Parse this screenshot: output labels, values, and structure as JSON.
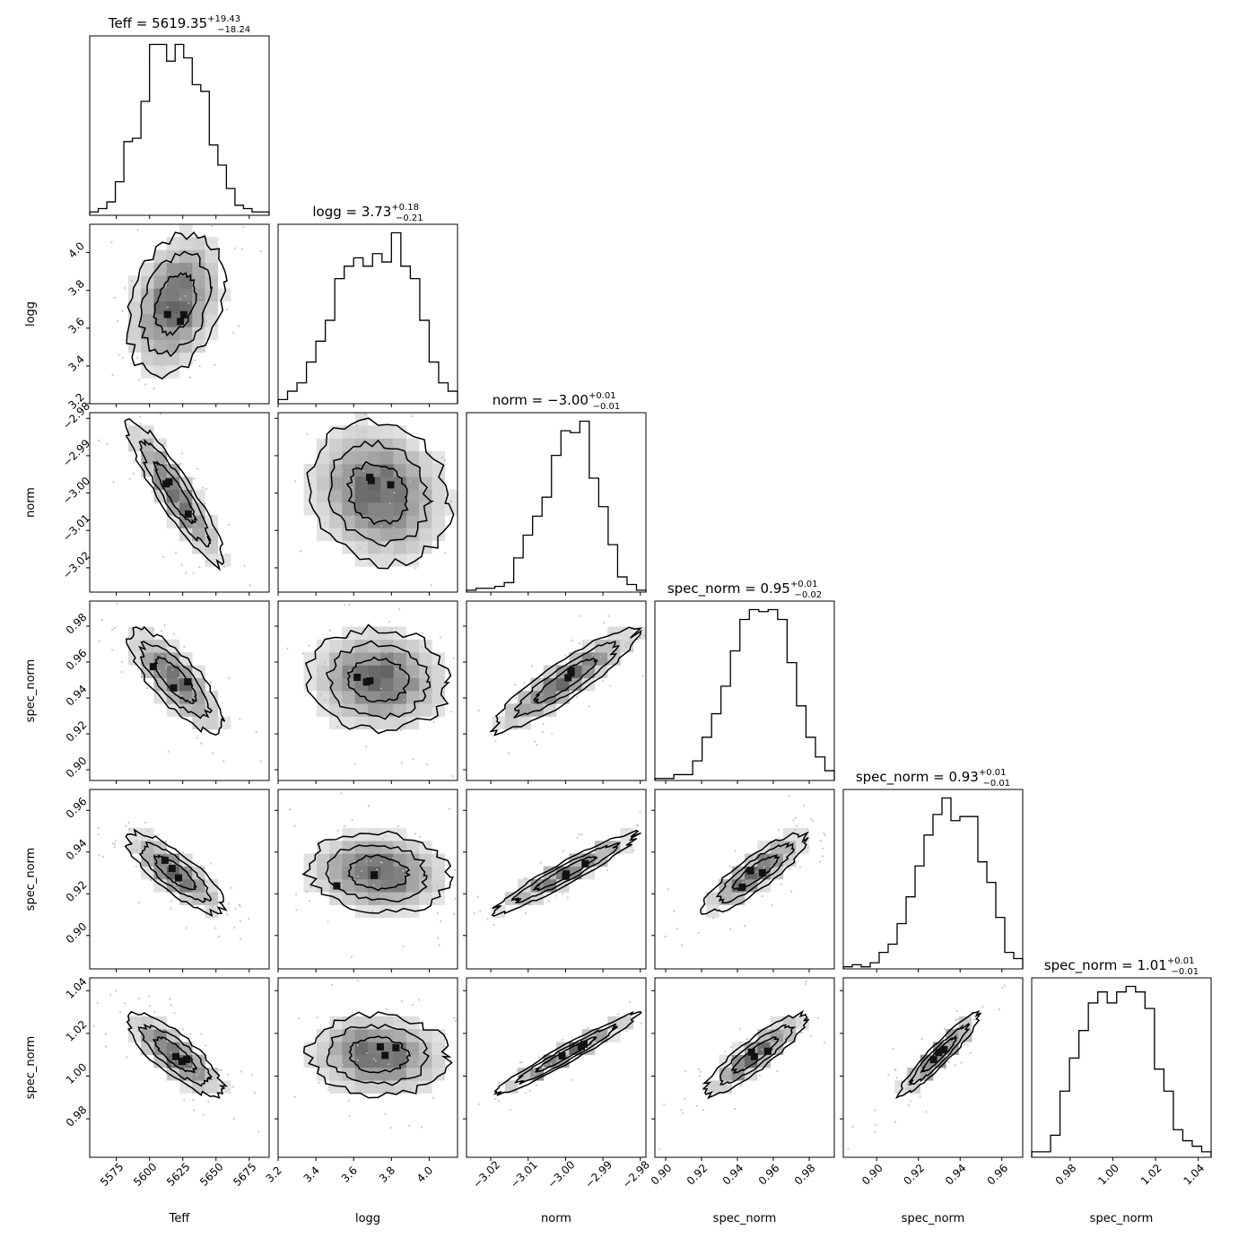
{
  "chart_data": {
    "type": "corner",
    "description_of_layout": "6x6 lower-triangular corner plot: diagonal panels are 1D step histograms, off-diagonal panels are 2D histograms with density contours and scatter points",
    "parameters": [
      {
        "label": "Teff",
        "title": "Teff = 5619.35",
        "median": 5619.35,
        "plus": "+19.43",
        "minus": "−18.24",
        "range": [
          5555,
          5690
        ],
        "ticks": [
          5575,
          5600,
          5625,
          5650,
          5675
        ],
        "tick_labels": [
          "5575",
          "5600",
          "5625",
          "5650",
          "5675"
        ]
      },
      {
        "label": "logg",
        "title": "logg = 3.73",
        "median": 3.73,
        "plus": "+0.18",
        "minus": "−0.21",
        "range": [
          3.2,
          4.15
        ],
        "ticks": [
          3.2,
          3.4,
          3.6,
          3.8,
          4.0
        ],
        "tick_labels": [
          "3.2",
          "3.4",
          "3.6",
          "3.8",
          "4.0"
        ]
      },
      {
        "label": "norm",
        "title": "norm = −3.00",
        "median": -3.0,
        "plus": "+0.01",
        "minus": "−0.01",
        "range": [
          -3.0265,
          -2.9785
        ],
        "ticks": [
          -3.02,
          -3.01,
          -3.0,
          -2.99,
          -2.98
        ],
        "tick_labels": [
          "−3.02",
          "−3.01",
          "−3.00",
          "−2.99",
          "−2.98"
        ]
      },
      {
        "label": "spec_norm",
        "title": "spec_norm = 0.95",
        "median": 0.95,
        "plus": "+0.01",
        "minus": "−0.02",
        "range": [
          0.894,
          0.994
        ],
        "ticks": [
          0.9,
          0.92,
          0.94,
          0.96,
          0.98
        ],
        "tick_labels": [
          "0.90",
          "0.92",
          "0.94",
          "0.96",
          "0.98"
        ]
      },
      {
        "label": "spec_norm",
        "title": "spec_norm = 0.93",
        "median": 0.93,
        "plus": "+0.01",
        "minus": "−0.01",
        "range": [
          0.884,
          0.97
        ],
        "ticks": [
          0.9,
          0.92,
          0.94,
          0.96
        ],
        "tick_labels": [
          "0.90",
          "0.92",
          "0.94",
          "0.96"
        ]
      },
      {
        "label": "spec_norm",
        "title": "spec_norm = 1.01",
        "median": 1.01,
        "plus": "+0.01",
        "minus": "−0.01",
        "range": [
          0.962,
          1.046
        ],
        "ticks": [
          0.98,
          1.0,
          1.02,
          1.04
        ],
        "tick_labels": [
          "0.98",
          "1.00",
          "1.02",
          "1.04"
        ]
      }
    ],
    "histograms": [
      [
        1,
        2,
        4,
        10,
        22,
        23,
        34,
        51,
        51,
        46,
        51,
        47,
        39,
        37,
        21,
        15,
        8,
        3,
        2,
        1,
        1
      ],
      [
        1,
        3,
        5,
        10,
        15,
        20,
        30,
        33,
        35,
        33,
        36,
        34,
        41,
        33,
        30,
        20,
        10,
        5,
        3
      ],
      [
        1,
        2,
        2,
        3,
        5,
        18,
        30,
        40,
        50,
        72,
        85,
        84,
        90,
        60,
        45,
        25,
        8,
        4,
        1
      ],
      [
        1,
        1,
        3,
        3,
        10,
        22,
        34,
        48,
        66,
        82,
        87,
        86,
        87,
        82,
        60,
        38,
        22,
        12,
        5
      ],
      [
        1,
        2,
        1,
        3,
        8,
        12,
        22,
        35,
        50,
        65,
        75,
        83,
        72,
        74,
        74,
        52,
        42,
        25,
        8,
        5
      ],
      [
        1,
        1,
        4,
        12,
        18,
        23,
        28,
        30,
        28,
        30,
        31,
        30,
        27,
        16,
        12,
        5,
        3,
        2,
        1
      ]
    ],
    "correlations": [
      [
        1,
        0.3,
        -0.9,
        -0.78,
        -0.8,
        -0.8
      ],
      [
        0.3,
        1,
        -0.15,
        -0.05,
        -0.1,
        -0.05
      ],
      [
        -0.9,
        -0.15,
        1,
        0.9,
        0.95,
        0.97
      ],
      [
        -0.78,
        -0.05,
        0.9,
        1,
        0.86,
        0.89
      ],
      [
        -0.8,
        -0.1,
        0.95,
        0.86,
        1,
        0.94
      ],
      [
        -0.8,
        -0.05,
        0.97,
        0.89,
        0.94,
        1
      ]
    ]
  }
}
